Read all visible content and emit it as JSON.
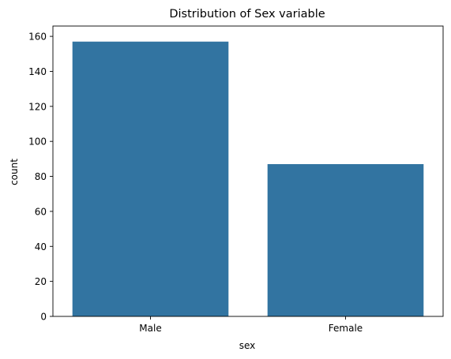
{
  "chart_data": {
    "type": "bar",
    "title": "Distribution of Sex variable",
    "xlabel": "sex",
    "ylabel": "count",
    "categories": [
      "Male",
      "Female"
    ],
    "values": [
      157,
      87
    ],
    "ylim": [
      0,
      165.9
    ],
    "yticks": [
      0,
      20,
      40,
      60,
      80,
      100,
      120,
      140,
      160
    ],
    "grid": false,
    "bar_color": "#3274a1"
  }
}
